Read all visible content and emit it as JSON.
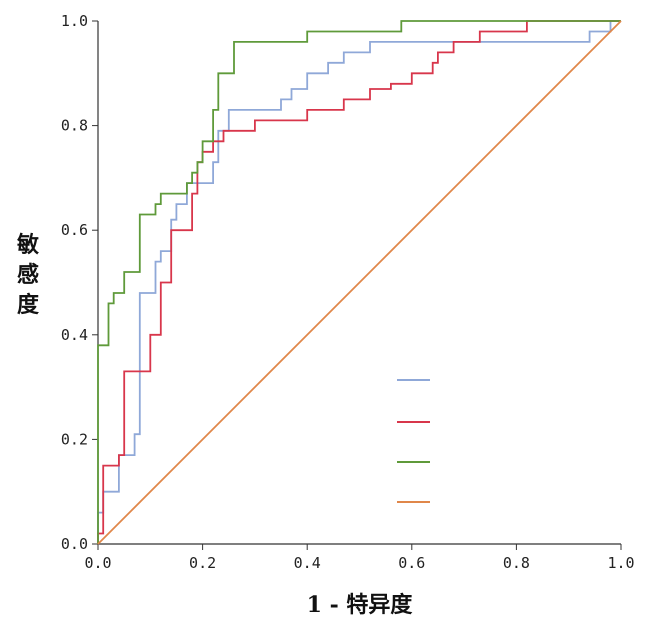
{
  "chart_data": {
    "type": "line",
    "xlabel": "1 - 特异度",
    "ylabel": "敏感度",
    "xlim": [
      0,
      1
    ],
    "ylim": [
      0,
      1
    ],
    "xticks": [
      "0.0",
      "0.2",
      "0.4",
      "0.6",
      "0.8",
      "1.0"
    ],
    "yticks": [
      "0.0",
      "0.2",
      "0.4",
      "0.6",
      "0.8",
      "1.0"
    ],
    "grid": false,
    "legend": {
      "position": "lower-right",
      "entries_shown_as_lines_only": true
    },
    "series": [
      {
        "color": "#8fa8d8",
        "points": [
          [
            0,
            0
          ],
          [
            0,
            0.06
          ],
          [
            0.01,
            0.06
          ],
          [
            0.01,
            0.1
          ],
          [
            0.04,
            0.1
          ],
          [
            0.04,
            0.17
          ],
          [
            0.07,
            0.17
          ],
          [
            0.07,
            0.21
          ],
          [
            0.08,
            0.21
          ],
          [
            0.08,
            0.48
          ],
          [
            0.11,
            0.48
          ],
          [
            0.11,
            0.54
          ],
          [
            0.12,
            0.54
          ],
          [
            0.12,
            0.56
          ],
          [
            0.14,
            0.56
          ],
          [
            0.14,
            0.62
          ],
          [
            0.15,
            0.62
          ],
          [
            0.15,
            0.65
          ],
          [
            0.17,
            0.65
          ],
          [
            0.17,
            0.69
          ],
          [
            0.22,
            0.69
          ],
          [
            0.22,
            0.73
          ],
          [
            0.23,
            0.73
          ],
          [
            0.23,
            0.79
          ],
          [
            0.25,
            0.79
          ],
          [
            0.25,
            0.83
          ],
          [
            0.35,
            0.83
          ],
          [
            0.35,
            0.85
          ],
          [
            0.37,
            0.85
          ],
          [
            0.37,
            0.87
          ],
          [
            0.4,
            0.87
          ],
          [
            0.4,
            0.9
          ],
          [
            0.44,
            0.9
          ],
          [
            0.44,
            0.92
          ],
          [
            0.47,
            0.92
          ],
          [
            0.47,
            0.94
          ],
          [
            0.52,
            0.94
          ],
          [
            0.52,
            0.96
          ],
          [
            0.94,
            0.96
          ],
          [
            0.94,
            0.98
          ],
          [
            0.98,
            0.98
          ],
          [
            0.98,
            1.0
          ],
          [
            1.0,
            1.0
          ]
        ]
      },
      {
        "color": "#d8364b",
        "points": [
          [
            0,
            0
          ],
          [
            0,
            0.02
          ],
          [
            0.01,
            0.02
          ],
          [
            0.01,
            0.15
          ],
          [
            0.04,
            0.15
          ],
          [
            0.04,
            0.17
          ],
          [
            0.05,
            0.17
          ],
          [
            0.05,
            0.33
          ],
          [
            0.1,
            0.33
          ],
          [
            0.1,
            0.4
          ],
          [
            0.12,
            0.4
          ],
          [
            0.12,
            0.5
          ],
          [
            0.14,
            0.5
          ],
          [
            0.14,
            0.6
          ],
          [
            0.18,
            0.6
          ],
          [
            0.18,
            0.67
          ],
          [
            0.19,
            0.67
          ],
          [
            0.19,
            0.73
          ],
          [
            0.2,
            0.73
          ],
          [
            0.2,
            0.75
          ],
          [
            0.22,
            0.75
          ],
          [
            0.22,
            0.77
          ],
          [
            0.24,
            0.77
          ],
          [
            0.24,
            0.79
          ],
          [
            0.3,
            0.79
          ],
          [
            0.3,
            0.81
          ],
          [
            0.4,
            0.81
          ],
          [
            0.4,
            0.83
          ],
          [
            0.47,
            0.83
          ],
          [
            0.47,
            0.85
          ],
          [
            0.52,
            0.85
          ],
          [
            0.52,
            0.87
          ],
          [
            0.56,
            0.87
          ],
          [
            0.56,
            0.88
          ],
          [
            0.6,
            0.88
          ],
          [
            0.6,
            0.9
          ],
          [
            0.64,
            0.9
          ],
          [
            0.64,
            0.92
          ],
          [
            0.65,
            0.92
          ],
          [
            0.65,
            0.94
          ],
          [
            0.68,
            0.94
          ],
          [
            0.68,
            0.96
          ],
          [
            0.73,
            0.96
          ],
          [
            0.73,
            0.98
          ],
          [
            0.82,
            0.98
          ],
          [
            0.82,
            1.0
          ],
          [
            1.0,
            1.0
          ]
        ]
      },
      {
        "color": "#5f9a3a",
        "points": [
          [
            0,
            0
          ],
          [
            0,
            0.38
          ],
          [
            0.02,
            0.38
          ],
          [
            0.02,
            0.46
          ],
          [
            0.03,
            0.46
          ],
          [
            0.03,
            0.48
          ],
          [
            0.05,
            0.48
          ],
          [
            0.05,
            0.52
          ],
          [
            0.08,
            0.52
          ],
          [
            0.08,
            0.63
          ],
          [
            0.11,
            0.63
          ],
          [
            0.11,
            0.65
          ],
          [
            0.12,
            0.65
          ],
          [
            0.12,
            0.67
          ],
          [
            0.17,
            0.67
          ],
          [
            0.17,
            0.69
          ],
          [
            0.18,
            0.69
          ],
          [
            0.18,
            0.71
          ],
          [
            0.19,
            0.71
          ],
          [
            0.19,
            0.73
          ],
          [
            0.2,
            0.73
          ],
          [
            0.2,
            0.77
          ],
          [
            0.22,
            0.77
          ],
          [
            0.22,
            0.83
          ],
          [
            0.23,
            0.83
          ],
          [
            0.23,
            0.9
          ],
          [
            0.26,
            0.9
          ],
          [
            0.26,
            0.96
          ],
          [
            0.4,
            0.96
          ],
          [
            0.4,
            0.98
          ],
          [
            0.58,
            0.98
          ],
          [
            0.58,
            1.0
          ],
          [
            1.0,
            1.0
          ]
        ]
      },
      {
        "color": "#e0874a",
        "points": [
          [
            0,
            0
          ],
          [
            1,
            1
          ]
        ]
      }
    ]
  }
}
